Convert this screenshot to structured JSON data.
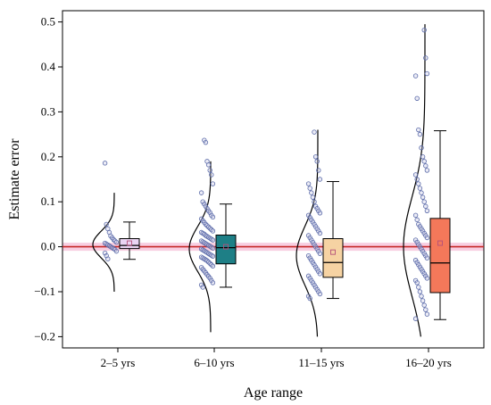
{
  "chart_data": {
    "type": "box",
    "title": "",
    "xlabel": "Age range",
    "ylabel": "Estimate error",
    "ylim": [
      -0.225,
      0.525
    ],
    "yticks": [
      -0.2,
      -0.1,
      0.0,
      0.1,
      0.2,
      0.3,
      0.4,
      0.5
    ],
    "ytick_labels": [
      "−0.2",
      "−0.1",
      "0.0",
      "0.1",
      "0.2",
      "0.3",
      "0.4",
      "0.5"
    ],
    "reference_line": {
      "y": 0.0,
      "color": "#c62828",
      "band": [
        -0.005,
        0.005
      ],
      "band_color": "#f7c6dc"
    },
    "grid": false,
    "legend": "none",
    "categories": [
      "2–5 yrs",
      "6–10 yrs",
      "11–15 yrs",
      "16–20 yrs"
    ],
    "groups": [
      {
        "label": "2–5 yrs",
        "box_color": "#ead5f3",
        "median": 0.003,
        "q1": -0.004,
        "q3": 0.018,
        "whisker_low": -0.028,
        "whisker_high": 0.055,
        "mean": 0.008,
        "density_range": [
          -0.1,
          0.12
        ],
        "density_mu": 0.005,
        "density_sigma": 0.03,
        "points": [
          0.186,
          0.05,
          0.04,
          0.032,
          0.024,
          0.02,
          0.016,
          0.013,
          0.01,
          0.008,
          0.006,
          0.004,
          0.002,
          0.0,
          -0.002,
          -0.004,
          -0.006,
          -0.01,
          -0.014,
          -0.02,
          -0.027
        ]
      },
      {
        "label": "6–10 yrs",
        "box_color": "#1e7f86",
        "median": -0.002,
        "q1": -0.038,
        "q3": 0.026,
        "whisker_low": -0.09,
        "whisker_high": 0.095,
        "mean": 0.0,
        "density_range": [
          -0.19,
          0.19
        ],
        "density_mu": -0.005,
        "density_sigma": 0.05,
        "points": [
          0.237,
          0.232,
          0.19,
          0.182,
          0.17,
          0.16,
          0.14,
          0.12,
          0.1,
          0.095,
          0.09,
          0.085,
          0.08,
          0.076,
          0.07,
          0.066,
          0.062,
          0.058,
          0.054,
          0.05,
          0.047,
          0.044,
          0.041,
          0.038,
          0.035,
          0.032,
          0.03,
          0.028,
          0.025,
          0.023,
          0.021,
          0.019,
          0.017,
          0.015,
          0.013,
          0.011,
          0.009,
          0.007,
          0.005,
          0.003,
          0.001,
          -0.001,
          -0.003,
          -0.005,
          -0.007,
          -0.009,
          -0.011,
          -0.013,
          -0.015,
          -0.017,
          -0.019,
          -0.021,
          -0.023,
          -0.025,
          -0.027,
          -0.029,
          -0.031,
          -0.034,
          -0.037,
          -0.04,
          -0.043,
          -0.046,
          -0.05,
          -0.054,
          -0.058,
          -0.062,
          -0.066,
          -0.07,
          -0.075,
          -0.08,
          -0.085,
          -0.09
        ]
      },
      {
        "label": "11–15 yrs",
        "box_color": "#f6d3a3",
        "median": -0.035,
        "q1": -0.068,
        "q3": 0.018,
        "whisker_low": -0.115,
        "whisker_high": 0.145,
        "mean": -0.012,
        "density_range": [
          -0.2,
          0.26
        ],
        "density_mu": -0.02,
        "density_sigma": 0.065,
        "points": [
          0.255,
          0.2,
          0.19,
          0.17,
          0.15,
          0.14,
          0.13,
          0.12,
          0.11,
          0.1,
          0.09,
          0.085,
          0.08,
          0.075,
          0.07,
          0.065,
          0.06,
          0.055,
          0.05,
          0.045,
          0.04,
          0.035,
          0.03,
          0.025,
          0.02,
          0.015,
          0.01,
          0.005,
          0.0,
          -0.005,
          -0.01,
          -0.015,
          -0.02,
          -0.025,
          -0.03,
          -0.035,
          -0.04,
          -0.045,
          -0.05,
          -0.055,
          -0.06,
          -0.065,
          -0.07,
          -0.075,
          -0.08,
          -0.085,
          -0.09,
          -0.095,
          -0.1,
          -0.105,
          -0.11,
          -0.115
        ]
      },
      {
        "label": "16–20 yrs",
        "box_color": "#f4785a",
        "median": -0.036,
        "q1": -0.102,
        "q3": 0.063,
        "whisker_low": -0.162,
        "whisker_high": 0.258,
        "mean": 0.008,
        "density_range": [
          -0.2,
          0.495
        ],
        "density_mu": 0.0,
        "density_sigma": 0.11,
        "points": [
          0.482,
          0.42,
          0.385,
          0.38,
          0.33,
          0.26,
          0.25,
          0.22,
          0.2,
          0.19,
          0.18,
          0.17,
          0.16,
          0.15,
          0.14,
          0.13,
          0.12,
          0.11,
          0.1,
          0.09,
          0.08,
          0.07,
          0.06,
          0.05,
          0.045,
          0.04,
          0.035,
          0.03,
          0.025,
          0.02,
          0.015,
          0.01,
          0.005,
          0.0,
          -0.005,
          -0.01,
          -0.015,
          -0.02,
          -0.025,
          -0.03,
          -0.035,
          -0.04,
          -0.045,
          -0.05,
          -0.055,
          -0.06,
          -0.065,
          -0.07,
          -0.075,
          -0.08,
          -0.09,
          -0.1,
          -0.11,
          -0.12,
          -0.13,
          -0.14,
          -0.15,
          -0.16
        ]
      }
    ]
  }
}
